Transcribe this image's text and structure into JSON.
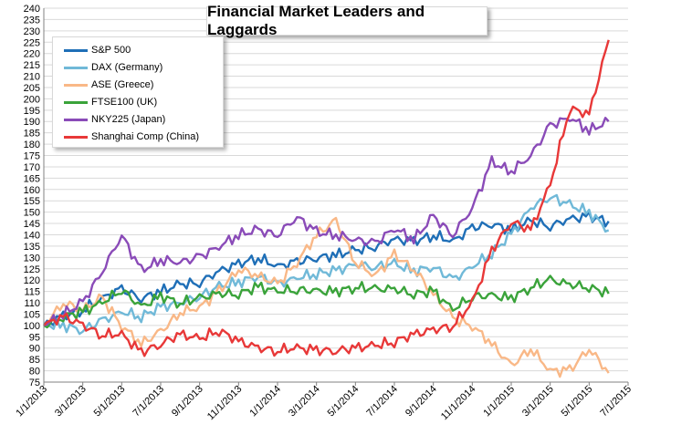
{
  "chart_data": {
    "type": "line",
    "title": "Financial Market Leaders and Laggards",
    "xlabel": "",
    "ylabel": "",
    "ylim": [
      75,
      240
    ],
    "ytick_step": 5,
    "x_tick_labels": [
      "1/1/2013",
      "3/1/2013",
      "5/1/2013",
      "7/1/2013",
      "9/1/2013",
      "11/1/2013",
      "1/1/2014",
      "3/1/2014",
      "5/1/2014",
      "7/1/2014",
      "9/1/2014",
      "11/1/2014",
      "1/1/2015",
      "3/1/2015",
      "5/1/2015",
      "7/1/2015"
    ],
    "x": [
      "2013-01",
      "2013-02",
      "2013-03",
      "2013-04",
      "2013-05",
      "2013-06",
      "2013-07",
      "2013-08",
      "2013-09",
      "2013-10",
      "2013-11",
      "2013-12",
      "2014-01",
      "2014-02",
      "2014-03",
      "2014-04",
      "2014-05",
      "2014-06",
      "2014-07",
      "2014-08",
      "2014-09",
      "2014-10",
      "2014-11",
      "2014-12",
      "2015-01",
      "2015-02",
      "2015-03",
      "2015-04",
      "2015-05",
      "2015-06"
    ],
    "grid": "horizontal",
    "legend_position": "top-left",
    "series": [
      {
        "name": "S&P 500",
        "color": "#1f6fb7",
        "values": [
          100,
          104,
          107,
          112,
          116,
          112,
          115,
          118,
          119,
          124,
          127,
          130,
          126,
          128,
          130,
          131,
          133,
          135,
          138,
          137,
          140,
          137,
          143,
          145,
          142,
          146,
          144,
          147,
          148,
          146
        ]
      },
      {
        "name": "DAX (Germany)",
        "color": "#70b9d8",
        "values": [
          100,
          100,
          98,
          102,
          106,
          104,
          108,
          110,
          113,
          117,
          119,
          122,
          118,
          121,
          123,
          124,
          127,
          126,
          127,
          124,
          126,
          120,
          126,
          132,
          140,
          152,
          157,
          153,
          150,
          142
        ]
      },
      {
        "name": "ASE (Greece)",
        "color": "#f9b887",
        "values": [
          100,
          110,
          107,
          112,
          100,
          92,
          97,
          106,
          108,
          115,
          125,
          122,
          118,
          128,
          140,
          146,
          128,
          122,
          131,
          125,
          114,
          103,
          100,
          92,
          82,
          90,
          80,
          80,
          90,
          79
        ]
      },
      {
        "name": "FTSE100 (UK)",
        "color": "#3aa33a",
        "values": [
          100,
          104,
          106,
          110,
          116,
          108,
          113,
          110,
          112,
          114,
          114,
          117,
          115,
          116,
          115,
          115,
          117,
          116,
          116,
          114,
          115,
          107,
          113,
          113,
          112,
          117,
          120,
          118,
          117,
          114
        ]
      },
      {
        "name": "NKY225 (Japan)",
        "color": "#8a4bb8",
        "values": [
          100,
          105,
          110,
          124,
          140,
          124,
          129,
          128,
          130,
          135,
          140,
          142,
          140,
          148,
          141,
          140,
          138,
          136,
          143,
          138,
          148,
          140,
          152,
          172,
          168,
          175,
          188,
          192,
          186,
          190
        ]
      },
      {
        "name": "Shanghai Comp (China)",
        "color": "#e83838",
        "values": [
          100,
          104,
          100,
          96,
          96,
          88,
          92,
          96,
          94,
          98,
          93,
          90,
          89,
          90,
          89,
          89,
          90,
          91,
          93,
          96,
          98,
          100,
          110,
          133,
          146,
          142,
          162,
          196,
          193,
          226
        ]
      }
    ]
  }
}
